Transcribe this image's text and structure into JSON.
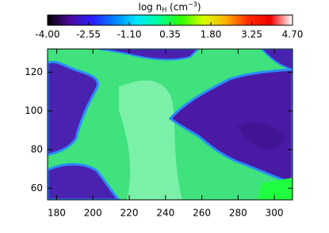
{
  "chart_data": {
    "type": "heatmap",
    "title_parts": [
      "log n",
      "H",
      " (cm",
      "−3",
      ")"
    ],
    "colormap": [
      "#000000",
      "#4b0a9c",
      "#2a1cff",
      "#0080ff",
      "#00e8ff",
      "#00ff99",
      "#30ff00",
      "#d8ff00",
      "#ffb000",
      "#ff2a00",
      "#ee0000",
      "#ffffff"
    ],
    "clim": [
      -4,
      4.7
    ],
    "cticks": [
      {
        "value": -4,
        "label": "-4.00"
      },
      {
        "value": -2.55,
        "label": "-2.55"
      },
      {
        "value": -1.1,
        "label": "-1.10"
      },
      {
        "value": 0.35,
        "label": "0.35"
      },
      {
        "value": 1.8,
        "label": "1.80"
      },
      {
        "value": 3.25,
        "label": "3.25"
      },
      {
        "value": 4.7,
        "label": "4.70"
      }
    ],
    "xlim": [
      175,
      310
    ],
    "xticks": [
      180,
      200,
      220,
      240,
      260,
      280,
      300
    ],
    "ylim": [
      54,
      132
    ],
    "yticks": [
      60,
      80,
      100,
      120
    ]
  }
}
